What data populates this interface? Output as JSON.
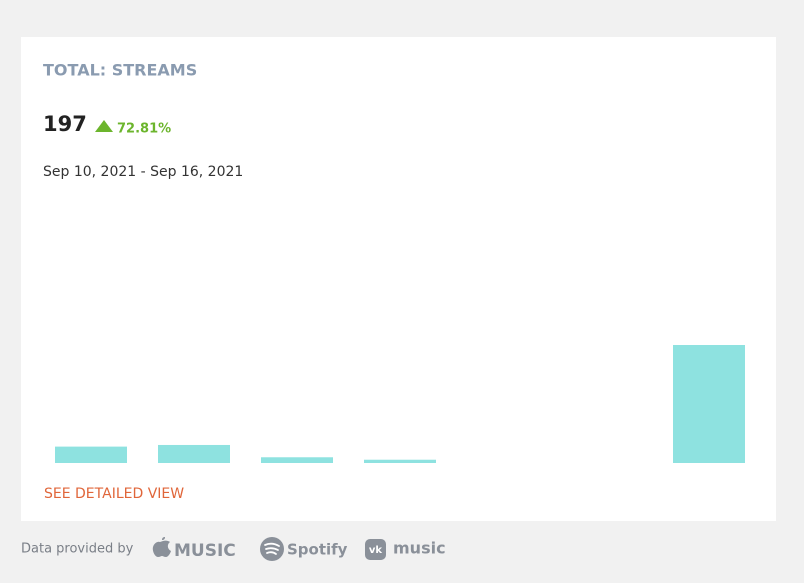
{
  "header": {
    "title": "TOTAL: STREAMS",
    "total": 197,
    "change": "72.81%",
    "period": "Sep 10, 2021 - Sep 16, 2021"
  },
  "chart_data": {
    "type": "bar",
    "categories": [
      null,
      null,
      null,
      null,
      null,
      null,
      null
    ],
    "values": [
      20,
      22,
      7,
      4,
      0,
      0,
      144
    ],
    "color": "#8ee2e0"
  },
  "link": "SEE DETAILED VIEW",
  "footer": {
    "label": "Data provided by",
    "providers": [
      "MUSIC",
      "Spotify",
      "music"
    ]
  }
}
